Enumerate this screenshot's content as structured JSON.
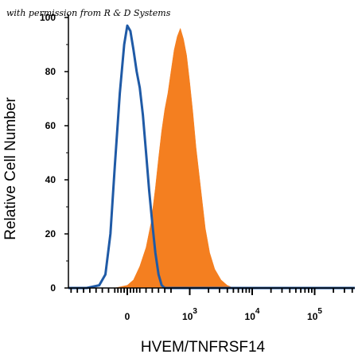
{
  "watermark": "with permission from R & D Systems",
  "chart_data": {
    "type": "area",
    "xlabel": "HVEM/TNFRSF14",
    "ylabel": "Relative Cell Number",
    "ylim": [
      0,
      100
    ],
    "y_ticks": [
      "0",
      "20",
      "40",
      "60",
      "80",
      "100"
    ],
    "x_scale": "biexponential",
    "x_ticks": [
      {
        "base": "0",
        "exp": ""
      },
      {
        "base": "10",
        "exp": "3"
      },
      {
        "base": "10",
        "exp": "4"
      },
      {
        "base": "10",
        "exp": "5"
      }
    ],
    "grid": false,
    "series": [
      {
        "style": "outline",
        "color": "#1f5aa6",
        "points": [
          [
            -0.65,
            0
          ],
          [
            -0.45,
            1
          ],
          [
            -0.35,
            5
          ],
          [
            -0.27,
            20
          ],
          [
            -0.2,
            45
          ],
          [
            -0.12,
            72
          ],
          [
            -0.05,
            90
          ],
          [
            0.0,
            97
          ],
          [
            0.05,
            95
          ],
          [
            0.1,
            88
          ],
          [
            0.15,
            80
          ],
          [
            0.2,
            74
          ],
          [
            0.25,
            64
          ],
          [
            0.3,
            50
          ],
          [
            0.35,
            36
          ],
          [
            0.4,
            24
          ],
          [
            0.45,
            13
          ],
          [
            0.5,
            5
          ],
          [
            0.55,
            1
          ],
          [
            0.6,
            0
          ]
        ]
      },
      {
        "style": "filled",
        "color": "#f47f20",
        "points": [
          [
            -0.2,
            0
          ],
          [
            0.0,
            1
          ],
          [
            0.1,
            3
          ],
          [
            0.2,
            8
          ],
          [
            0.3,
            15
          ],
          [
            0.38,
            24
          ],
          [
            0.45,
            37
          ],
          [
            0.5,
            48
          ],
          [
            0.55,
            58
          ],
          [
            0.6,
            66
          ],
          [
            0.65,
            72
          ],
          [
            0.7,
            80
          ],
          [
            0.75,
            88
          ],
          [
            0.8,
            93
          ],
          [
            0.85,
            96
          ],
          [
            0.9,
            92
          ],
          [
            0.95,
            86
          ],
          [
            1.0,
            76
          ],
          [
            1.05,
            65
          ],
          [
            1.1,
            52
          ],
          [
            1.15,
            42
          ],
          [
            1.2,
            32
          ],
          [
            1.25,
            22
          ],
          [
            1.32,
            13
          ],
          [
            1.4,
            7
          ],
          [
            1.5,
            3
          ],
          [
            1.6,
            1
          ],
          [
            1.7,
            0
          ]
        ]
      }
    ]
  }
}
